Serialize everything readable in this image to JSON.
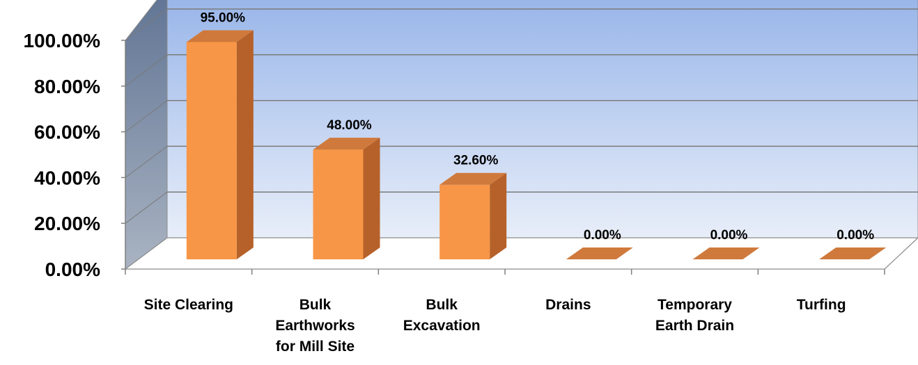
{
  "chart_data": {
    "type": "bar",
    "style": "3d-column",
    "categories": [
      [
        "Site Clearing"
      ],
      [
        "Bulk",
        "Earthworks",
        "for Mill Site"
      ],
      [
        "Bulk",
        "Excavation"
      ],
      [
        "Drains"
      ],
      [
        "Temporary",
        "Earth Drain"
      ],
      [
        "Turfing"
      ]
    ],
    "values": [
      0.95,
      0.48,
      0.326,
      0.0,
      0.0,
      0.0
    ],
    "data_labels": [
      "95.00%",
      "48.00%",
      "32.60%",
      "0.00%",
      "0.00%",
      "0.00%"
    ],
    "y_ticks": [
      0,
      0.2,
      0.4,
      0.6,
      0.8,
      1.0
    ],
    "y_tick_labels": [
      "0.00%",
      "20.00%",
      "40.00%",
      "60.00%",
      "80.00%",
      "100.00%"
    ],
    "ylim": [
      0,
      1.0
    ],
    "title": "",
    "xlabel": "",
    "ylabel": "",
    "grid": true,
    "legend": "none",
    "colors": {
      "bar_front": "#f79646",
      "bar_side": "#b6612a",
      "bar_top": "#cf7a3c",
      "wall_top": "#95b3e8",
      "wall_bottom": "#e8eef9",
      "side_wall_top": "#5f7393",
      "side_wall_bottom": "#a9b3c2",
      "gridline": "#7a7a7a"
    }
  }
}
